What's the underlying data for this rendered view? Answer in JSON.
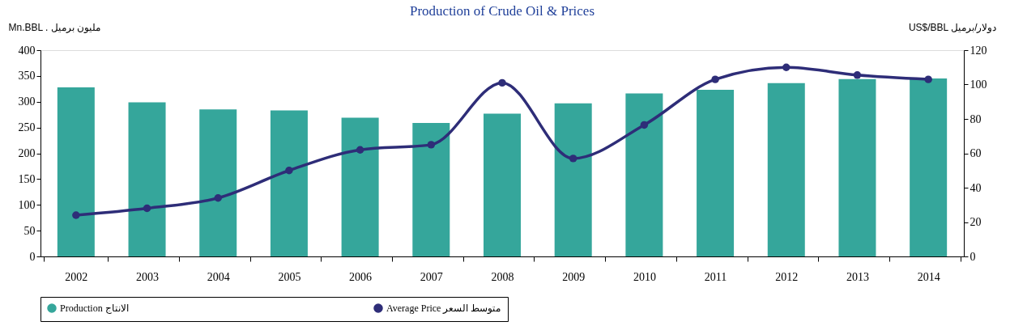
{
  "chart_data": {
    "type": "bar",
    "title": "Production of Crude Oil & Prices",
    "ylabel": "Mn.BBL .      مليون برميل",
    "y2label": "US$/BBL        دولار/برميل",
    "categories": [
      "2002",
      "2003",
      "2004",
      "2005",
      "2006",
      "2007",
      "2008",
      "2009",
      "2010",
      "2011",
      "2012",
      "2013",
      "2014"
    ],
    "series": [
      {
        "name": "Production الانتاج",
        "color": "#35a69b",
        "values": [
          328,
          299,
          285,
          283,
          269,
          259,
          277,
          297,
          316,
          323,
          336,
          344,
          345
        ]
      },
      {
        "name": "Average Price متوسط السعر",
        "type": "line",
        "axis": "y2",
        "color": "#2e2d78",
        "values": [
          24,
          28,
          34,
          50,
          62,
          65,
          101,
          57,
          76.5,
          103,
          110,
          105.5,
          103
        ]
      }
    ],
    "ylim": [
      0,
      400
    ],
    "yticks": [
      0,
      50,
      100,
      150,
      200,
      250,
      300,
      350,
      400
    ],
    "y2lim": [
      0,
      120
    ],
    "y2ticks": [
      0,
      20,
      40,
      60,
      80,
      100,
      120
    ],
    "marker": "circle",
    "legend": "bottom",
    "grid": false
  }
}
